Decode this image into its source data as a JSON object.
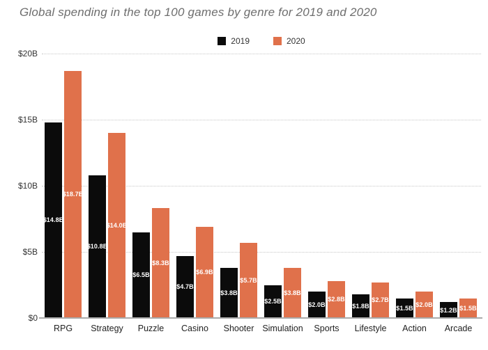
{
  "title": "Global spending in the top 100 games by genre for 2019 and 2020",
  "legend": [
    {
      "label": "2019",
      "color": "#0b0b0b"
    },
    {
      "label": "2020",
      "color": "#e0714b"
    }
  ],
  "colors": {
    "bar_2019": "#0b0b0b",
    "bar_2020": "#e0714b",
    "gridline": "#c6c6c6",
    "baseline": "#aaaaaa",
    "title_text": "#6e6e6e",
    "axis_text": "#222222",
    "value_label_text": "#ffffff"
  },
  "chart_data": {
    "type": "bar",
    "title": "Global spending in the top 100 games by genre for 2019 and 2020",
    "categories": [
      "RPG",
      "Strategy",
      "Puzzle",
      "Casino",
      "Shooter",
      "Simulation",
      "Sports",
      "Lifestyle",
      "Action",
      "Arcade"
    ],
    "series": [
      {
        "name": "2019",
        "color": "#0b0b0b",
        "values": [
          14.8,
          10.8,
          6.5,
          4.7,
          3.8,
          2.5,
          2.0,
          1.8,
          1.5,
          1.2
        ],
        "labels": [
          "$14.8B",
          "$10.8B",
          "$6.5B",
          "$4.7B",
          "$3.8B",
          "$2.5B",
          "$2.0B",
          "$1.8B",
          "$1.5B",
          "$1.2B"
        ]
      },
      {
        "name": "2020",
        "color": "#e0714b",
        "values": [
          18.7,
          14.0,
          8.3,
          6.9,
          5.7,
          3.8,
          2.8,
          2.7,
          2.0,
          1.5
        ],
        "labels": [
          "$18.7B",
          "$14.0B",
          "$8.3B",
          "$6.9B",
          "$5.7B",
          "$3.8B",
          "$2.8B",
          "$2.7B",
          "$2.0B",
          "$1.5B"
        ]
      }
    ],
    "ylabel": "",
    "xlabel": "",
    "ylim": [
      0,
      20
    ],
    "y_ticks": [
      {
        "value": 0,
        "label": "$0"
      },
      {
        "value": 5,
        "label": "$5B"
      },
      {
        "value": 10,
        "label": "$10B"
      },
      {
        "value": 15,
        "label": "$15B"
      },
      {
        "value": 20,
        "label": "$20B"
      }
    ],
    "grid": "horizontal-dotted",
    "legend_position": "top-center",
    "value_labels": "centered-inside-bars"
  }
}
